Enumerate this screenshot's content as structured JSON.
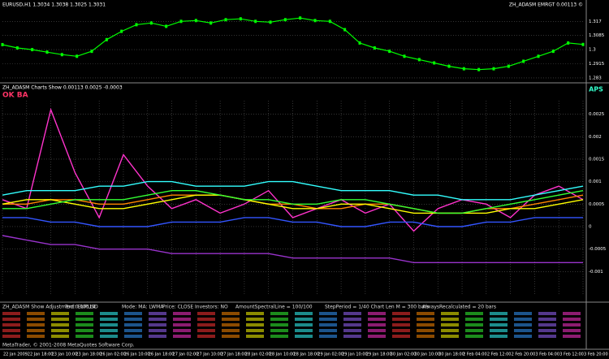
{
  "window": {
    "price_title": "EURUSD,H1 1.3034 1.3038 1.3025 1.3031",
    "price_indicator": "ZH_ADASM EMRGT 0.00113 ©",
    "indicator_title": "ZH_ADASM Charts Show 0.00113 0.0025 -0.0003",
    "indicator_tag_left": "OK BA",
    "indicator_tag_right": "APS",
    "table_headers": [
      "ZH_ADASM Show Adjustment 0.00514",
      "Tool: EURUSD",
      "Mode: MA: LWMA",
      "Price: CLOSE",
      "Investors: NO",
      "AmountSpectralLine = 100/100",
      "StepPeriod = 1/40 Chart Len M = 300 bars",
      "AlwaysRecalculated = 20 bars"
    ],
    "copyright": "MetaTrader, © 2001-2008 MetaQuotes Software Corp."
  },
  "chart_data": [
    {
      "type": "line",
      "color": "#00ff00",
      "grid": true,
      "categories": [
        null,
        null,
        null,
        null,
        null,
        null,
        null,
        null,
        null,
        null,
        null,
        null,
        null,
        null,
        null,
        null,
        null,
        null,
        null,
        null,
        null,
        null,
        null,
        null,
        null,
        null,
        null,
        null,
        null,
        null,
        null,
        null,
        null,
        null,
        null,
        null,
        null,
        null,
        null,
        null
      ],
      "values": [
        1.303,
        1.301,
        1.3,
        1.2985,
        1.297,
        1.296,
        1.299,
        1.306,
        1.311,
        1.315,
        1.316,
        1.314,
        1.317,
        1.3175,
        1.316,
        1.318,
        1.3185,
        1.317,
        1.3165,
        1.318,
        1.319,
        1.3175,
        1.317,
        1.312,
        1.304,
        1.301,
        1.299,
        1.296,
        1.294,
        1.292,
        1.29,
        1.2885,
        1.288,
        1.2885,
        1.29,
        1.293,
        1.296,
        1.299,
        1.304,
        1.3031
      ],
      "ylim": [
        1.281,
        1.323
      ],
      "yticks": [
        1.283,
        1.2915,
        1.3,
        1.3085,
        1.317
      ]
    },
    {
      "type": "line",
      "grid": true,
      "categories": [
        "22 Jan 2009",
        "22 Jan 18:00",
        "23 Jan 10:00",
        "23 Jan 18:00",
        "26 Jan 02:00",
        "26 Jan 10:00",
        "26 Jan 18:00",
        "27 Jan 02:00",
        "27 Jan 10:00",
        "27 Jan 18:00",
        "28 Jan 02:00",
        "28 Jan 10:00",
        "28 Jan 18:00",
        "29 Jan 02:00",
        "29 Jan 10:00",
        "29 Jan 18:00",
        "30 Jan 02:00",
        "30 Jan 10:00",
        "30 Jan 18:00",
        "2 Feb 04:00",
        "2 Feb 12:00",
        "2 Feb 20:00",
        "3 Feb 04:00",
        "3 Feb 12:00",
        "3 Feb 20:00"
      ],
      "series": [
        {
          "color": "#ff33cc",
          "values": [
            0.0006,
            0.0004,
            0.0026,
            0.0012,
            0.0002,
            0.0016,
            0.0009,
            0.0004,
            0.0006,
            0.0003,
            0.0005,
            0.0008,
            0.0002,
            0.0004,
            0.0006,
            0.0003,
            0.0005,
            -0.0001,
            0.0004,
            0.0006,
            0.0005,
            0.0002,
            0.0007,
            0.0009,
            0.0006
          ]
        },
        {
          "color": "#ff8800",
          "values": [
            0.0005,
            0.0005,
            0.0006,
            0.0006,
            0.0005,
            0.0005,
            0.0006,
            0.0007,
            0.0007,
            0.0007,
            0.0006,
            0.0005,
            0.0005,
            0.0004,
            0.0004,
            0.0005,
            0.0005,
            0.0004,
            0.0003,
            0.0003,
            0.0004,
            0.0004,
            0.0005,
            0.0006,
            0.0007
          ]
        },
        {
          "color": "#ffff00",
          "values": [
            0.0005,
            0.0006,
            0.0006,
            0.0005,
            0.0004,
            0.0004,
            0.0005,
            0.0006,
            0.0007,
            0.0007,
            0.0006,
            0.0005,
            0.0004,
            0.0004,
            0.0005,
            0.0005,
            0.0004,
            0.0003,
            0.0003,
            0.0003,
            0.0003,
            0.0004,
            0.0004,
            0.0005,
            0.0006
          ]
        },
        {
          "color": "#33ff33",
          "values": [
            0.0004,
            0.0004,
            0.0005,
            0.0006,
            0.0006,
            0.0006,
            0.0007,
            0.0008,
            0.0008,
            0.0007,
            0.0006,
            0.0006,
            0.0005,
            0.0005,
            0.0006,
            0.0006,
            0.0005,
            0.0004,
            0.0003,
            0.0003,
            0.0004,
            0.0005,
            0.0006,
            0.0007,
            0.0008
          ]
        },
        {
          "color": "#33ffff",
          "values": [
            0.0007,
            0.0008,
            0.0008,
            0.0008,
            0.0009,
            0.0009,
            0.001,
            0.001,
            0.0009,
            0.0009,
            0.0009,
            0.001,
            0.001,
            0.0009,
            0.0008,
            0.0008,
            0.0008,
            0.0007,
            0.0007,
            0.0006,
            0.0006,
            0.0006,
            0.0007,
            0.0008,
            0.0009
          ]
        },
        {
          "color": "#3355ff",
          "values": [
            0.0002,
            0.0002,
            0.0001,
            0.0001,
            0.0,
            0.0,
            0.0,
            0.0001,
            0.0001,
            0.0001,
            0.0002,
            0.0002,
            0.0001,
            0.0001,
            0.0,
            0.0,
            0.0001,
            0.0001,
            0.0,
            0.0,
            0.0001,
            0.0001,
            0.0002,
            0.0002,
            0.0002
          ]
        },
        {
          "color": "#9933cc",
          "values": [
            -0.0002,
            -0.0003,
            -0.0004,
            -0.0004,
            -0.0005,
            -0.0005,
            -0.0005,
            -0.0006,
            -0.0006,
            -0.0006,
            -0.0006,
            -0.0006,
            -0.0007,
            -0.0007,
            -0.0007,
            -0.0007,
            -0.0007,
            -0.0008,
            -0.0008,
            -0.0008,
            -0.0008,
            -0.0008,
            -0.0008,
            -0.0008,
            -0.0008
          ]
        }
      ],
      "ylim": [
        -0.0015,
        0.0028
      ],
      "yticks": [
        -0.001,
        -0.0005,
        0,
        0.0005,
        0.001,
        0.0015,
        0.002,
        0.0025
      ]
    }
  ]
}
